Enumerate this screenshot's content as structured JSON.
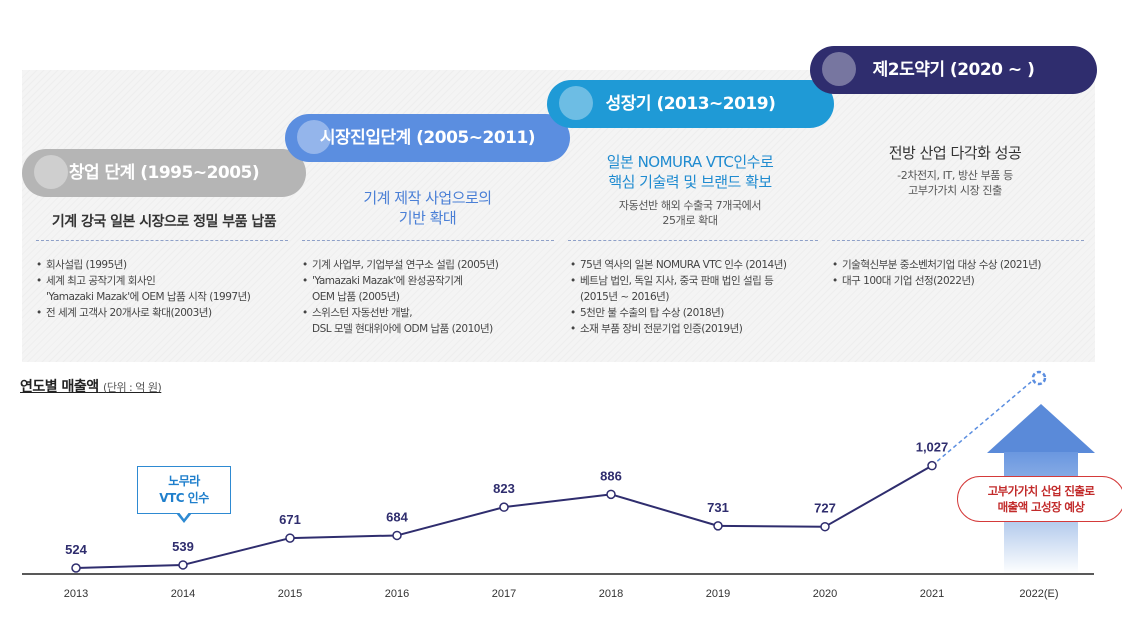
{
  "stages": [
    {
      "title": "창업 단계 (1995~2005)",
      "headline": [
        "기계 강국 일본 시장으로 정밀 부품 납품"
      ],
      "sub": [],
      "bullets": [
        {
          "text": "회사설립 (1995년)",
          "bullet": true
        },
        {
          "text": "세계 최고 공작기계 회사인",
          "bullet": true
        },
        {
          "text": "'Yamazaki Mazak'에 OEM 납품 시작 (1997년)",
          "bullet": false
        },
        {
          "text": "전 세계 고객사 20개사로 확대(2003년)",
          "bullet": true
        }
      ]
    },
    {
      "title": "시장진입단계 (2005~2011)",
      "headline": [
        "기계 제작 사업으로의",
        "기반 확대"
      ],
      "sub": [],
      "bullets": [
        {
          "text": "기계 사업부, 기업부설 연구소 설립 (2005년)",
          "bullet": true
        },
        {
          "text": "'Yamazaki Mazak'에 완성공작기계",
          "bullet": true
        },
        {
          "text": "OEM 납품 (2005년)",
          "bullet": false
        },
        {
          "text": "스위스턴 자동선반 개발,",
          "bullet": true
        },
        {
          "text": "DSL 모델 현대위아에 ODM 납품 (2010년)",
          "bullet": false
        }
      ]
    },
    {
      "title": "성장기 (2013~2019)",
      "headline": [
        "일본 NOMURA VTC인수로",
        "핵심 기술력 및 브랜드 확보"
      ],
      "sub": [
        "자동선반 해외 수출국 7개국에서",
        "25개로 확대"
      ],
      "bullets": [
        {
          "text": "75년 역사의 일본 NOMURA VTC 인수 (2014년)",
          "bullet": true
        },
        {
          "text": "베트남 법인, 독일 지사, 중국 판매 법인 설립 등",
          "bullet": true
        },
        {
          "text": "(2015년 ~ 2016년)",
          "bullet": false
        },
        {
          "text": "5천만 불 수출의 탑 수상 (2018년)",
          "bullet": true
        },
        {
          "text": "소재 부품 장비 전문기업 인증(2019년)",
          "bullet": true
        }
      ]
    },
    {
      "title": "제2도약기 (2020 ~ )",
      "headline": [
        "전방 산업 다각화 성공"
      ],
      "sub": [
        "-2차전지, IT, 방산 부품 등",
        "고부가가치 시장 진출"
      ],
      "bullets": [
        {
          "text": "기술혁신부분 중소벤처기업 대상 수상 (2021년)",
          "bullet": true
        },
        {
          "text": "대구 100대 기업 선정(2022년)",
          "bullet": true
        }
      ]
    }
  ],
  "sales": {
    "title": "연도별 매출액",
    "unit": "(단위 : 억 원)"
  },
  "callout": {
    "line1": "노무라",
    "line2": "VTC 인수"
  },
  "forecast": {
    "line1": "고부가가치 산업 진출로",
    "line2": "매출액 고성장 예상"
  },
  "colors": {
    "line": "#2f2d6e",
    "stage1": "#b5b5b5",
    "stage2": "#5b8ee0",
    "stage3": "#1f9ad6",
    "stage4": "#2f2d6e",
    "forecast_border": "#d43a3a"
  },
  "chart_data": {
    "type": "line",
    "title": "연도별 매출액",
    "xlabel": "",
    "ylabel": "",
    "categories": [
      "2013",
      "2014",
      "2015",
      "2016",
      "2017",
      "2018",
      "2019",
      "2020",
      "2021",
      "2022(E)"
    ],
    "series": [
      {
        "values": [
          524,
          539,
          671,
          684,
          823,
          886,
          731,
          727,
          1027,
          null
        ]
      }
    ],
    "data_labels": [
      "524",
      "539",
      "671",
      "684",
      "823",
      "886",
      "731",
      "727",
      "1,027",
      ""
    ],
    "ylim": [
      500,
      1200
    ],
    "grid": false,
    "projection": "dashed line from 2021 toward an unlabeled 2022(E) marker"
  }
}
